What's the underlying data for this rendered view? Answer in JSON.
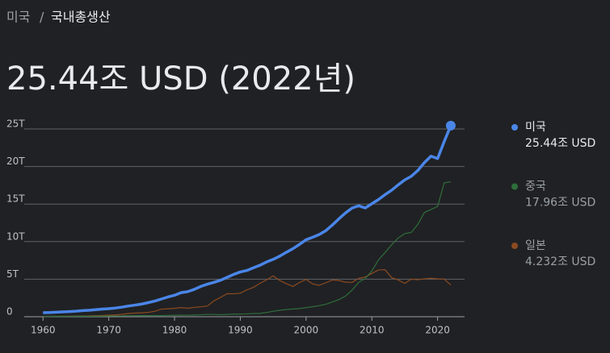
{
  "header": {
    "breadcrumb": [
      "미국",
      "국내총생산"
    ],
    "breadcrumb_separator": "/",
    "headline": "25.44조 USD (2022년)"
  },
  "chart_data": {
    "type": "line",
    "x": [
      1960,
      1961,
      1962,
      1963,
      1964,
      1965,
      1966,
      1967,
      1968,
      1969,
      1970,
      1971,
      1972,
      1973,
      1974,
      1975,
      1976,
      1977,
      1978,
      1979,
      1980,
      1981,
      1982,
      1983,
      1984,
      1985,
      1986,
      1987,
      1988,
      1989,
      1990,
      1991,
      1992,
      1993,
      1994,
      1995,
      1996,
      1997,
      1998,
      1999,
      2000,
      2001,
      2002,
      2003,
      2004,
      2005,
      2006,
      2007,
      2008,
      2009,
      2010,
      2011,
      2012,
      2013,
      2014,
      2015,
      2016,
      2017,
      2018,
      2019,
      2020,
      2021,
      2022
    ],
    "series": [
      {
        "name": "미국",
        "color": "#4a86e8",
        "values": [
          0.54,
          0.56,
          0.6,
          0.64,
          0.69,
          0.74,
          0.82,
          0.86,
          0.94,
          1.02,
          1.07,
          1.16,
          1.28,
          1.43,
          1.55,
          1.69,
          1.88,
          2.09,
          2.36,
          2.63,
          2.86,
          3.21,
          3.34,
          3.64,
          4.04,
          4.34,
          4.58,
          4.86,
          5.24,
          5.64,
          5.96,
          6.16,
          6.52,
          6.86,
          7.29,
          7.64,
          8.07,
          8.58,
          9.06,
          9.63,
          10.25,
          10.58,
          10.94,
          11.46,
          12.21,
          13.04,
          13.82,
          14.47,
          14.77,
          14.48,
          15.05,
          15.6,
          16.25,
          16.84,
          17.55,
          18.21,
          18.7,
          19.48,
          20.53,
          21.38,
          21.06,
          23.32,
          25.44
        ],
        "value_labels": [
          null,
          null,
          null,
          null,
          null,
          null,
          null,
          null,
          null,
          null,
          null,
          null,
          null,
          null,
          null,
          null,
          null,
          null,
          null,
          null,
          null,
          null,
          null,
          null,
          null,
          null,
          null,
          null,
          null,
          null,
          null,
          null,
          null,
          null,
          null,
          null,
          null,
          null,
          null,
          null,
          null,
          null,
          null,
          null,
          null,
          null,
          null,
          null,
          null,
          null,
          null,
          null,
          null,
          null,
          null,
          null,
          null,
          null,
          null,
          null,
          null,
          null,
          "25.44조 USD"
        ]
      },
      {
        "name": "중국",
        "color": "#2f6e3b",
        "values": [
          0.06,
          0.05,
          0.05,
          0.05,
          0.06,
          0.07,
          0.08,
          0.07,
          0.07,
          0.08,
          0.09,
          0.1,
          0.11,
          0.14,
          0.14,
          0.16,
          0.15,
          0.17,
          0.15,
          0.18,
          0.19,
          0.2,
          0.21,
          0.23,
          0.26,
          0.31,
          0.3,
          0.27,
          0.31,
          0.35,
          0.36,
          0.38,
          0.43,
          0.44,
          0.56,
          0.73,
          0.86,
          0.96,
          1.03,
          1.09,
          1.21,
          1.34,
          1.47,
          1.66,
          1.96,
          2.29,
          2.75,
          3.55,
          4.59,
          5.1,
          6.09,
          7.55,
          8.53,
          9.57,
          10.48,
          11.06,
          11.23,
          12.31,
          13.89,
          14.28,
          14.69,
          17.82,
          17.96
        ],
        "value_labels": [
          null,
          null,
          null,
          null,
          null,
          null,
          null,
          null,
          null,
          null,
          null,
          null,
          null,
          null,
          null,
          null,
          null,
          null,
          null,
          null,
          null,
          null,
          null,
          null,
          null,
          null,
          null,
          null,
          null,
          null,
          null,
          null,
          null,
          null,
          null,
          null,
          null,
          null,
          null,
          null,
          null,
          null,
          null,
          null,
          null,
          null,
          null,
          null,
          null,
          null,
          null,
          null,
          null,
          null,
          null,
          null,
          null,
          null,
          null,
          null,
          null,
          null,
          "17.96조 USD"
        ]
      },
      {
        "name": "일본",
        "color": "#8b4a20",
        "values": [
          0.04,
          0.05,
          0.06,
          0.07,
          0.08,
          0.09,
          0.11,
          0.12,
          0.15,
          0.17,
          0.21,
          0.24,
          0.32,
          0.43,
          0.48,
          0.52,
          0.58,
          0.72,
          1.01,
          1.06,
          1.11,
          1.22,
          1.13,
          1.24,
          1.32,
          1.43,
          2.12,
          2.58,
          3.07,
          3.05,
          3.13,
          3.58,
          3.91,
          4.45,
          4.91,
          5.45,
          4.83,
          4.41,
          4.03,
          4.56,
          4.97,
          4.37,
          4.18,
          4.52,
          4.89,
          4.83,
          4.6,
          4.58,
          5.11,
          5.29,
          5.76,
          6.23,
          6.27,
          5.21,
          4.9,
          4.44,
          5.0,
          4.93,
          5.04,
          5.12,
          5.04,
          5.01,
          4.232
        ],
        "value_labels": [
          null,
          null,
          null,
          null,
          null,
          null,
          null,
          null,
          null,
          null,
          null,
          null,
          null,
          null,
          null,
          null,
          null,
          null,
          null,
          null,
          null,
          null,
          null,
          null,
          null,
          null,
          null,
          null,
          null,
          null,
          null,
          null,
          null,
          null,
          null,
          null,
          null,
          null,
          null,
          null,
          null,
          null,
          null,
          null,
          null,
          null,
          null,
          null,
          null,
          null,
          null,
          null,
          null,
          null,
          null,
          null,
          null,
          null,
          null,
          null,
          null,
          null,
          "4.232조 USD"
        ]
      }
    ],
    "xlim": [
      1956.9,
      2024.1
    ],
    "xticks": [
      1960,
      1970,
      1980,
      1990,
      2000,
      2010,
      2020
    ],
    "ylim": [
      0,
      25
    ],
    "yticks": [
      {
        "value": 0,
        "label": "0"
      },
      {
        "value": 5,
        "label": "5T"
      },
      {
        "value": 10,
        "label": "10T"
      },
      {
        "value": 15,
        "label": "15T"
      },
      {
        "value": 20,
        "label": "20T"
      },
      {
        "value": 25,
        "label": "25T"
      }
    ],
    "grid": true,
    "legend": "right"
  }
}
